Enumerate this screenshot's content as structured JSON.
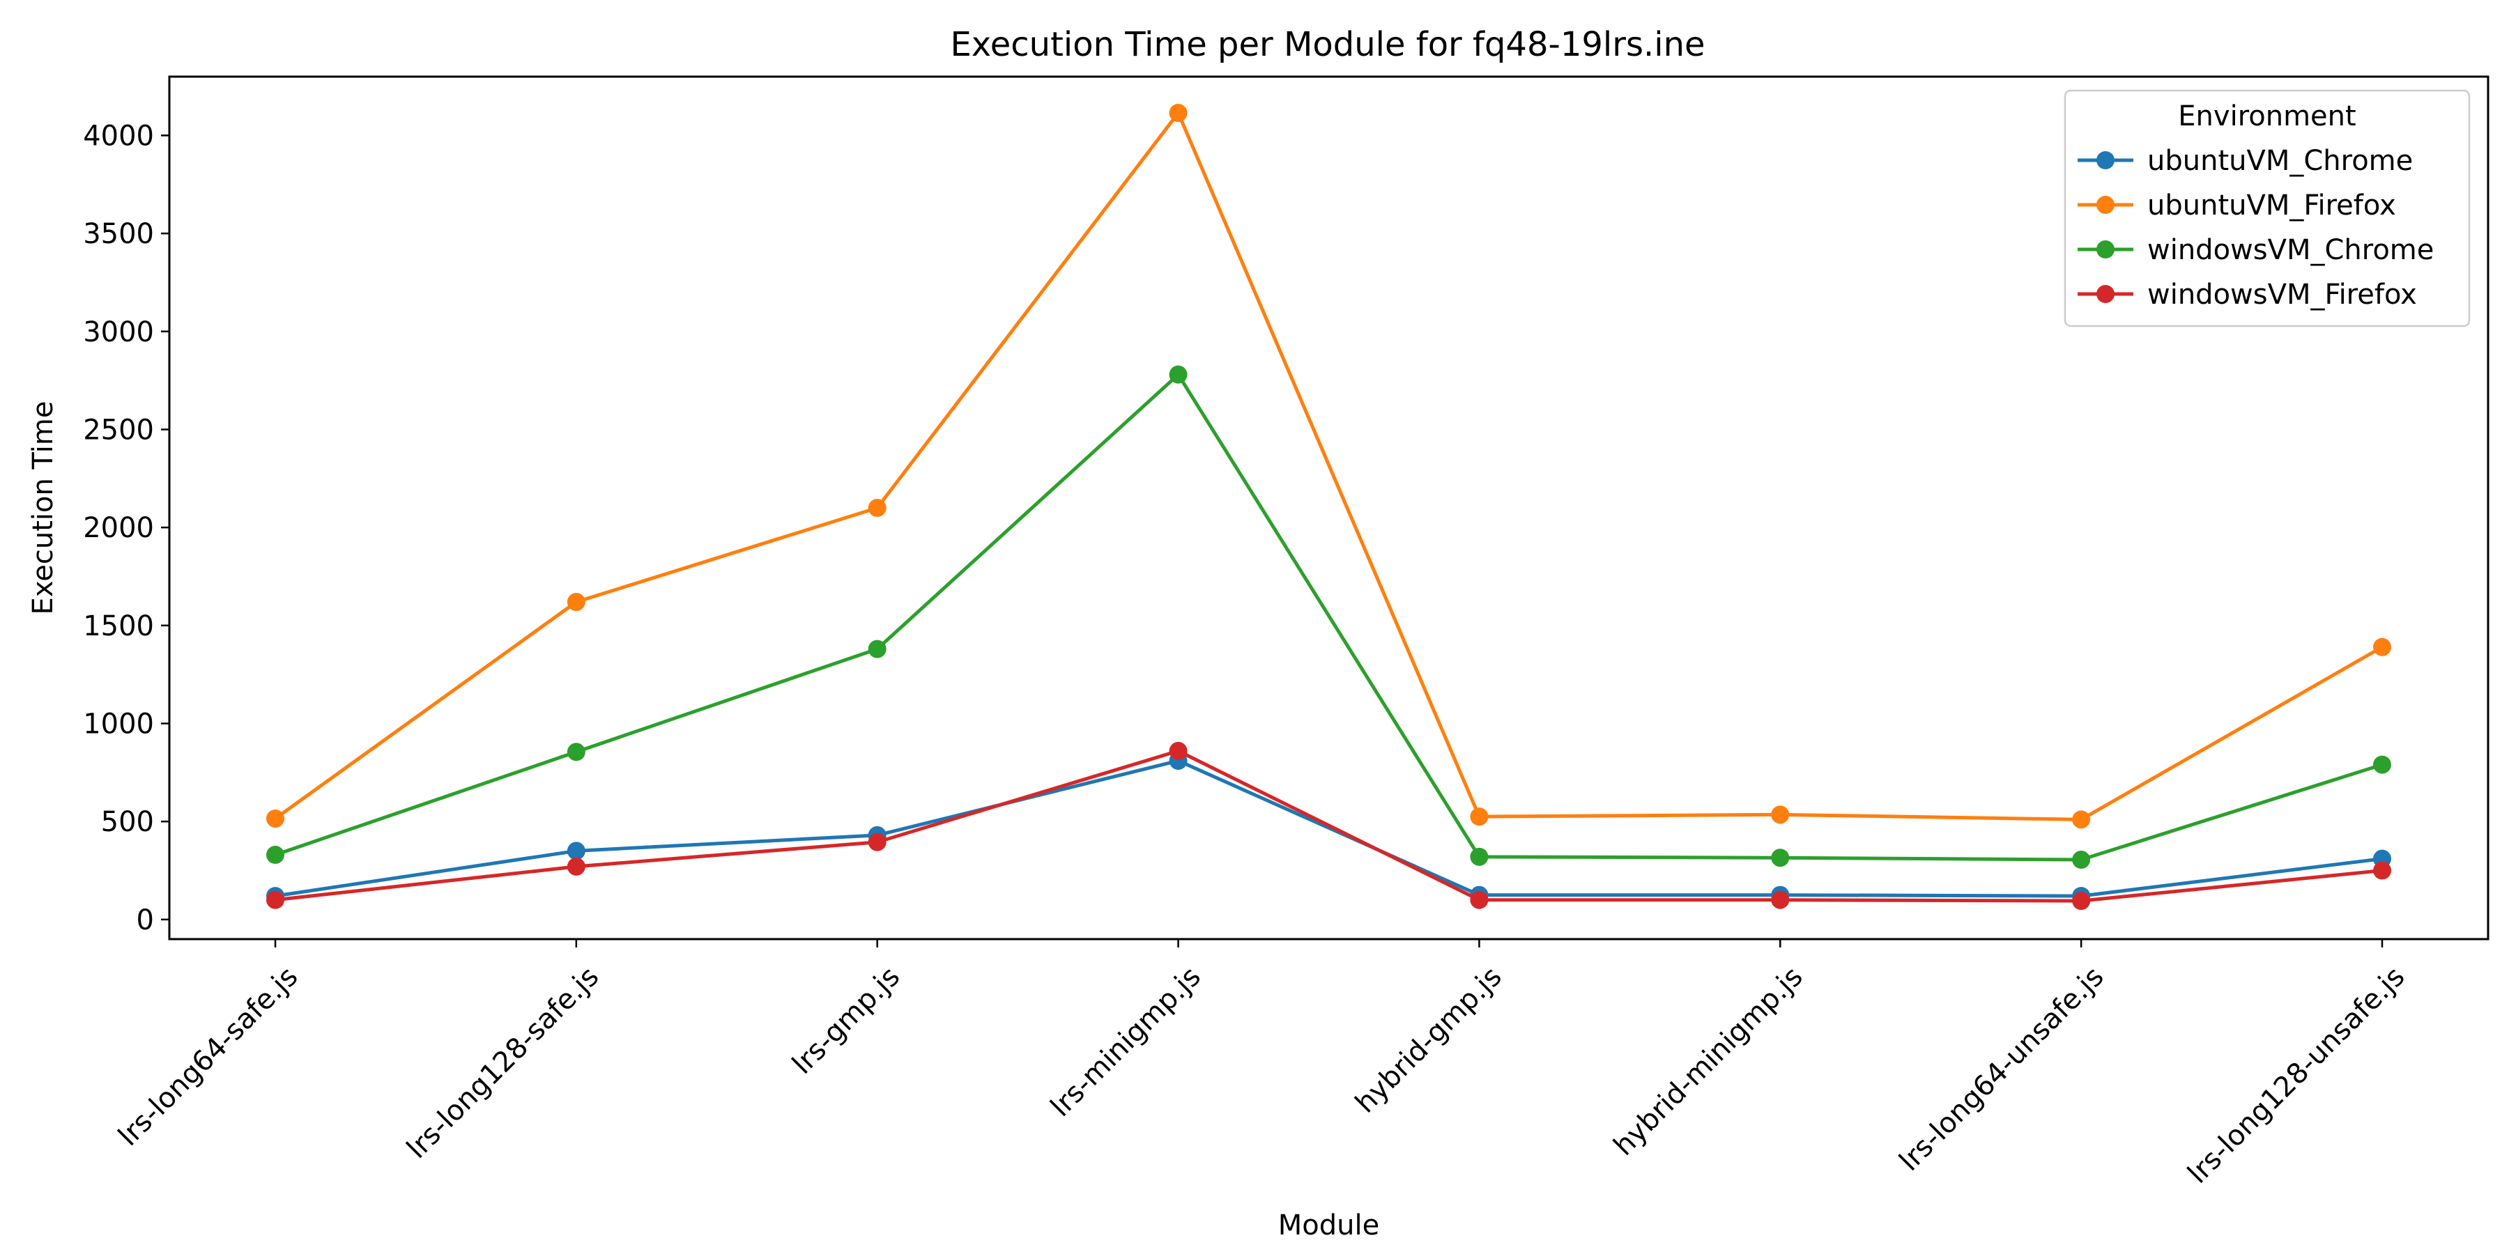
{
  "chart_data": {
    "type": "line",
    "title": "Execution Time per Module for fq48-19lrs.ine",
    "xlabel": "Module",
    "ylabel": "Execution Time",
    "categories": [
      "lrs-long64-safe.js",
      "lrs-long128-safe.js",
      "lrs-gmp.js",
      "lrs-minigmp.js",
      "hybrid-gmp.js",
      "hybrid-minigmp.js",
      "lrs-long64-unsafe.js",
      "lrs-long128-unsafe.js"
    ],
    "ylim": [
      -100,
      4300
    ],
    "yticks": [
      0,
      500,
      1000,
      1500,
      2000,
      2500,
      3000,
      3500,
      4000
    ],
    "grid": false,
    "legend": {
      "title": "Environment",
      "placement": "top-right"
    },
    "series": [
      {
        "name": "ubuntuVM_Chrome",
        "color": "#1f77b4",
        "values": [
          120,
          350,
          430,
          810,
          125,
          125,
          120,
          310
        ]
      },
      {
        "name": "ubuntuVM_Firefox",
        "color": "#ff7f0e",
        "values": [
          515,
          1620,
          2100,
          4115,
          525,
          535,
          510,
          1390
        ]
      },
      {
        "name": "windowsVM_Chrome",
        "color": "#2ca02c",
        "values": [
          330,
          855,
          1380,
          2780,
          320,
          315,
          305,
          790
        ]
      },
      {
        "name": "windowsVM_Firefox",
        "color": "#d62728",
        "values": [
          100,
          270,
          395,
          860,
          100,
          100,
          95,
          250
        ]
      }
    ]
  }
}
